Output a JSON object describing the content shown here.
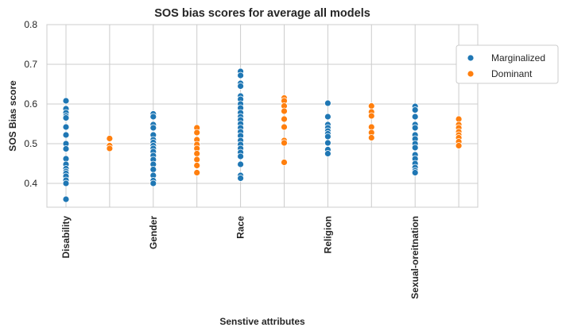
{
  "chart_data": {
    "type": "scatter",
    "title": "SOS bias scores for average all models",
    "xlabel": "Senstive attributes",
    "ylabel": "SOS Bias score",
    "ylim": [
      0.34,
      0.8
    ],
    "yticks": [
      "0.4",
      "0.5",
      "0.6",
      "0.7",
      "0.8"
    ],
    "categories": [
      "Disability",
      "Gender",
      "Race",
      "Religion",
      "Sexual-oreitnation"
    ],
    "grid": true,
    "legend_position": "top-right",
    "series": [
      {
        "name": "Marginalized",
        "color": "#1f77b4",
        "values": [
          [
            0.608,
            0.588,
            0.578,
            0.57,
            0.565,
            0.542,
            0.522,
            0.5,
            0.487,
            0.462,
            0.448,
            0.437,
            0.43,
            0.425,
            0.418,
            0.408,
            0.4,
            0.36
          ],
          [
            0.575,
            0.568,
            0.548,
            0.54,
            0.522,
            0.51,
            0.503,
            0.495,
            0.488,
            0.48,
            0.47,
            0.46,
            0.448,
            0.435,
            0.42,
            0.407,
            0.4
          ],
          [
            0.682,
            0.672,
            0.652,
            0.645,
            0.62,
            0.612,
            0.6,
            0.59,
            0.578,
            0.568,
            0.56,
            0.55,
            0.54,
            0.53,
            0.52,
            0.508,
            0.498,
            0.488,
            0.478,
            0.468,
            0.448,
            0.42,
            0.413
          ],
          [
            0.602,
            0.568,
            0.548,
            0.54,
            0.532,
            0.525,
            0.518,
            0.502,
            0.485,
            0.475
          ],
          [
            0.594,
            0.585,
            0.568,
            0.548,
            0.54,
            0.522,
            0.512,
            0.5,
            0.49,
            0.472,
            0.462,
            0.45,
            0.44,
            0.432,
            0.427
          ]
        ]
      },
      {
        "name": "Dominant",
        "color": "#ff7f0e",
        "values": [
          [
            0.513,
            0.495,
            0.488
          ],
          [
            0.54,
            0.528,
            0.51,
            0.498,
            0.488,
            0.475,
            0.46,
            0.445,
            0.427
          ],
          [
            0.615,
            0.608,
            0.595,
            0.582,
            0.562,
            0.542,
            0.508,
            0.502,
            0.453
          ],
          [
            0.595,
            0.58,
            0.57,
            0.542,
            0.528,
            0.515
          ],
          [
            0.562,
            0.548,
            0.54,
            0.53,
            0.522,
            0.515,
            0.505,
            0.495
          ]
        ]
      }
    ]
  }
}
